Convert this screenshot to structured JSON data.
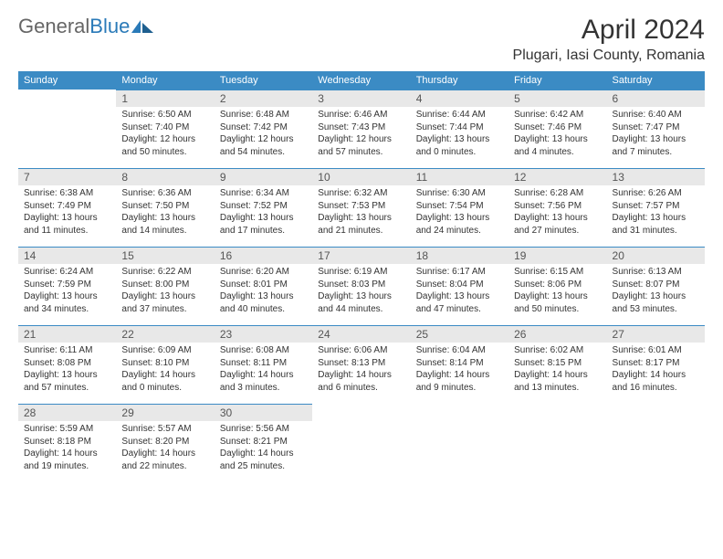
{
  "brand": {
    "part1": "General",
    "part2": "Blue"
  },
  "title": "April 2024",
  "location": "Plugari, Iasi County, Romania",
  "colors": {
    "header_bg": "#3b8bc4",
    "header_text": "#ffffff",
    "daynum_bg": "#e8e8e8",
    "daynum_border": "#3b8bc4",
    "text": "#333333",
    "logo_gray": "#666666",
    "logo_blue": "#2a7ab8"
  },
  "weekdays": [
    "Sunday",
    "Monday",
    "Tuesday",
    "Wednesday",
    "Thursday",
    "Friday",
    "Saturday"
  ],
  "weeks": [
    [
      null,
      {
        "n": "1",
        "sr": "6:50 AM",
        "ss": "7:40 PM",
        "dl": "12 hours and 50 minutes."
      },
      {
        "n": "2",
        "sr": "6:48 AM",
        "ss": "7:42 PM",
        "dl": "12 hours and 54 minutes."
      },
      {
        "n": "3",
        "sr": "6:46 AM",
        "ss": "7:43 PM",
        "dl": "12 hours and 57 minutes."
      },
      {
        "n": "4",
        "sr": "6:44 AM",
        "ss": "7:44 PM",
        "dl": "13 hours and 0 minutes."
      },
      {
        "n": "5",
        "sr": "6:42 AM",
        "ss": "7:46 PM",
        "dl": "13 hours and 4 minutes."
      },
      {
        "n": "6",
        "sr": "6:40 AM",
        "ss": "7:47 PM",
        "dl": "13 hours and 7 minutes."
      }
    ],
    [
      {
        "n": "7",
        "sr": "6:38 AM",
        "ss": "7:49 PM",
        "dl": "13 hours and 11 minutes."
      },
      {
        "n": "8",
        "sr": "6:36 AM",
        "ss": "7:50 PM",
        "dl": "13 hours and 14 minutes."
      },
      {
        "n": "9",
        "sr": "6:34 AM",
        "ss": "7:52 PM",
        "dl": "13 hours and 17 minutes."
      },
      {
        "n": "10",
        "sr": "6:32 AM",
        "ss": "7:53 PM",
        "dl": "13 hours and 21 minutes."
      },
      {
        "n": "11",
        "sr": "6:30 AM",
        "ss": "7:54 PM",
        "dl": "13 hours and 24 minutes."
      },
      {
        "n": "12",
        "sr": "6:28 AM",
        "ss": "7:56 PM",
        "dl": "13 hours and 27 minutes."
      },
      {
        "n": "13",
        "sr": "6:26 AM",
        "ss": "7:57 PM",
        "dl": "13 hours and 31 minutes."
      }
    ],
    [
      {
        "n": "14",
        "sr": "6:24 AM",
        "ss": "7:59 PM",
        "dl": "13 hours and 34 minutes."
      },
      {
        "n": "15",
        "sr": "6:22 AM",
        "ss": "8:00 PM",
        "dl": "13 hours and 37 minutes."
      },
      {
        "n": "16",
        "sr": "6:20 AM",
        "ss": "8:01 PM",
        "dl": "13 hours and 40 minutes."
      },
      {
        "n": "17",
        "sr": "6:19 AM",
        "ss": "8:03 PM",
        "dl": "13 hours and 44 minutes."
      },
      {
        "n": "18",
        "sr": "6:17 AM",
        "ss": "8:04 PM",
        "dl": "13 hours and 47 minutes."
      },
      {
        "n": "19",
        "sr": "6:15 AM",
        "ss": "8:06 PM",
        "dl": "13 hours and 50 minutes."
      },
      {
        "n": "20",
        "sr": "6:13 AM",
        "ss": "8:07 PM",
        "dl": "13 hours and 53 minutes."
      }
    ],
    [
      {
        "n": "21",
        "sr": "6:11 AM",
        "ss": "8:08 PM",
        "dl": "13 hours and 57 minutes."
      },
      {
        "n": "22",
        "sr": "6:09 AM",
        "ss": "8:10 PM",
        "dl": "14 hours and 0 minutes."
      },
      {
        "n": "23",
        "sr": "6:08 AM",
        "ss": "8:11 PM",
        "dl": "14 hours and 3 minutes."
      },
      {
        "n": "24",
        "sr": "6:06 AM",
        "ss": "8:13 PM",
        "dl": "14 hours and 6 minutes."
      },
      {
        "n": "25",
        "sr": "6:04 AM",
        "ss": "8:14 PM",
        "dl": "14 hours and 9 minutes."
      },
      {
        "n": "26",
        "sr": "6:02 AM",
        "ss": "8:15 PM",
        "dl": "14 hours and 13 minutes."
      },
      {
        "n": "27",
        "sr": "6:01 AM",
        "ss": "8:17 PM",
        "dl": "14 hours and 16 minutes."
      }
    ],
    [
      {
        "n": "28",
        "sr": "5:59 AM",
        "ss": "8:18 PM",
        "dl": "14 hours and 19 minutes."
      },
      {
        "n": "29",
        "sr": "5:57 AM",
        "ss": "8:20 PM",
        "dl": "14 hours and 22 minutes."
      },
      {
        "n": "30",
        "sr": "5:56 AM",
        "ss": "8:21 PM",
        "dl": "14 hours and 25 minutes."
      },
      null,
      null,
      null,
      null
    ]
  ],
  "labels": {
    "sunrise": "Sunrise:",
    "sunset": "Sunset:",
    "daylight": "Daylight:"
  }
}
